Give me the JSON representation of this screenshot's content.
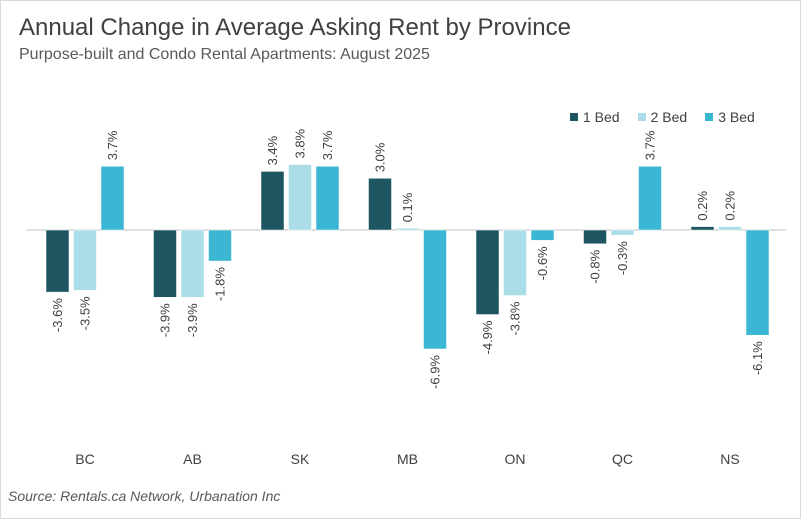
{
  "title": "Annual Change in Average Asking Rent by Province",
  "subtitle": "Purpose-built and Condo Rental Apartments: August 2025",
  "source": "Source: Rentals.ca Network, Urbanation Inc",
  "colors": {
    "one_bed": "#1d5561",
    "two_bed": "#aadde7",
    "three_bed": "#3bb7d3"
  },
  "legend": {
    "one_bed": "1 Bed",
    "two_bed": "2 Bed",
    "three_bed": "3 Bed"
  },
  "chart_data": {
    "type": "bar",
    "title": "Annual Change in Average Asking Rent by Province",
    "subtitle": "Purpose-built and Condo Rental Apartments: August 2025",
    "xlabel": "",
    "ylabel": "",
    "categories": [
      "BC",
      "AB",
      "SK",
      "MB",
      "ON",
      "QC",
      "NS"
    ],
    "series": [
      {
        "name": "1 Bed",
        "color": "#1d5561",
        "values": [
          -3.6,
          -3.9,
          3.4,
          3.0,
          -4.9,
          -0.8,
          0.2
        ]
      },
      {
        "name": "2 Bed",
        "color": "#aadde7",
        "values": [
          -3.5,
          -3.9,
          3.8,
          0.1,
          -3.8,
          -0.3,
          0.2
        ]
      },
      {
        "name": "3 Bed",
        "color": "#3bb7d3",
        "values": [
          3.7,
          -1.8,
          3.7,
          -6.9,
          -0.6,
          3.7,
          -6.1
        ]
      }
    ],
    "value_format": "percent_1dp",
    "data_labels": true,
    "data_label_rotation": "vertical",
    "ylim": [
      -12.7,
      7.6
    ],
    "grid": false,
    "legend_position": "top-right"
  }
}
